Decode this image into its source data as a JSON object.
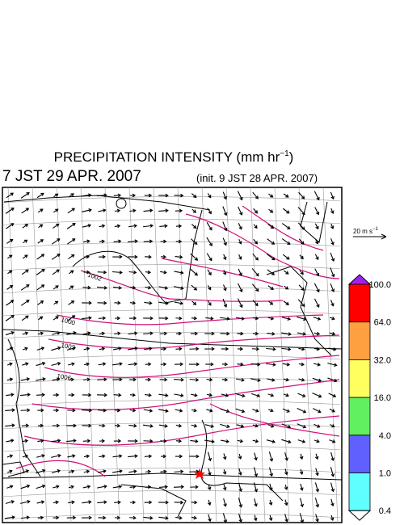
{
  "header": {
    "title_main": "PRECIPITATION INTENSITY (mm hr",
    "title_sup": "−1",
    "title_close": ")",
    "valid_time": "7 JST 29 APR. 2007",
    "init_time": "(init. 9 JST 28 APR. 2007)"
  },
  "scale": {
    "label": "20 m s",
    "sup": "−1"
  },
  "colorbar": {
    "labels": [
      "100.0",
      "64.0",
      "32.0",
      "16.0",
      "4.0",
      "1.0",
      "0.4"
    ],
    "colors": [
      "#a020f0",
      "#ff0000",
      "#ffa040",
      "#ffff60",
      "#60f060",
      "#6060ff",
      "#60ffff",
      "#ffffff"
    ]
  },
  "contour_labels": [
    "1002",
    "1000",
    "1003",
    "1006"
  ]
}
